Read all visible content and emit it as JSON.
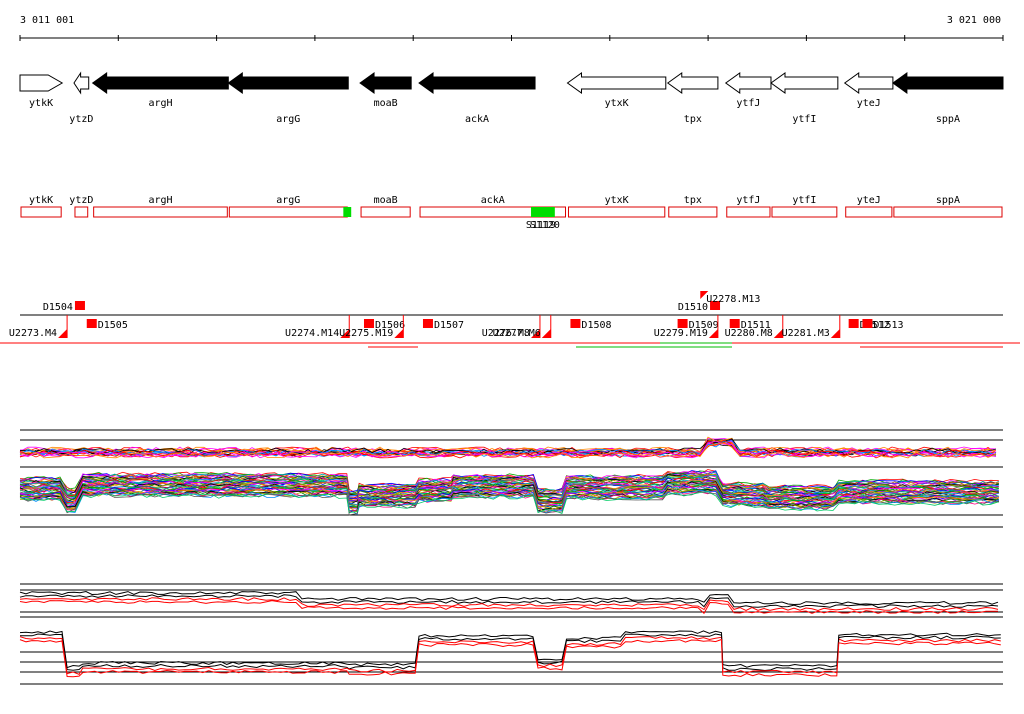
{
  "ruler": {
    "start_label": "3 011 001",
    "end_label": "3 021 000",
    "start_bp": 3011001,
    "end_bp": 3021000
  },
  "colors": {
    "gene_fill": "#000000",
    "gene_outline": "#000000",
    "annotation_box": "#dd0000",
    "highlight": "#00dd00",
    "marker": "#ff0000",
    "sample_line": "#ff0000",
    "black_line": "#000000"
  },
  "genes": [
    {
      "name": "ytkK",
      "start": 3011001,
      "end": 3011430,
      "strand": "+",
      "filled": false
    },
    {
      "name": "ytzD",
      "start": 3011550,
      "end": 3011700,
      "strand": "-",
      "filled": false
    },
    {
      "name": "argH",
      "start": 3011740,
      "end": 3013120,
      "strand": "-",
      "filled": true
    },
    {
      "name": "argG",
      "start": 3013120,
      "end": 3014340,
      "strand": "-",
      "filled": true
    },
    {
      "name": "moaB",
      "start": 3014460,
      "end": 3014980,
      "strand": "-",
      "filled": true
    },
    {
      "name": "ackA",
      "start": 3015060,
      "end": 3016240,
      "strand": "-",
      "filled": true
    },
    {
      "name": "ytxK",
      "start": 3016570,
      "end": 3017570,
      "strand": "-",
      "filled": false
    },
    {
      "name": "tpx",
      "start": 3017590,
      "end": 3018100,
      "strand": "-",
      "filled": false
    },
    {
      "name": "ytfJ",
      "start": 3018180,
      "end": 3018640,
      "strand": "-",
      "filled": false
    },
    {
      "name": "ytfI",
      "start": 3018640,
      "end": 3019320,
      "strand": "-",
      "filled": false
    },
    {
      "name": "yteJ",
      "start": 3019390,
      "end": 3019880,
      "strand": "-",
      "filled": false
    },
    {
      "name": "sppA",
      "start": 3019880,
      "end": 3021000,
      "strand": "-",
      "filled": true
    }
  ],
  "annotations": [
    {
      "name": "ytkK",
      "start": 3011001,
      "end": 3011430
    },
    {
      "name": "ytzD",
      "start": 3011550,
      "end": 3011700
    },
    {
      "name": "argH",
      "start": 3011740,
      "end": 3013120
    },
    {
      "name": "argG",
      "start": 3013120,
      "end": 3014340
    },
    {
      "name": "moaB",
      "start": 3014460,
      "end": 3014980
    },
    {
      "name": "ackA",
      "start": 3015060,
      "end": 3016560
    },
    {
      "name": "ytxK",
      "start": 3016570,
      "end": 3017570
    },
    {
      "name": "tpx",
      "start": 3017590,
      "end": 3018100
    },
    {
      "name": "ytfJ",
      "start": 3018180,
      "end": 3018640
    },
    {
      "name": "ytfI",
      "start": 3018640,
      "end": 3019320
    },
    {
      "name": "yteJ",
      "start": 3019390,
      "end": 3019880
    },
    {
      "name": "sppA",
      "start": 3019880,
      "end": 3021000
    }
  ],
  "highlights": [
    {
      "start": 3014290,
      "end": 3014370,
      "label": ""
    },
    {
      "start": 3016200,
      "end": 3016440,
      "label": "S1119"
    },
    {
      "start": 3016200,
      "end": 3016440,
      "label": "S1120"
    }
  ],
  "markers_upper": [
    {
      "label": "D1504",
      "pos": 3011560,
      "row": 0
    },
    {
      "label": "D1510",
      "pos": 3018020,
      "row": 0
    },
    {
      "label": "U2278.M13",
      "pos": 3017880,
      "row": -1
    }
  ],
  "markers_lower": [
    {
      "label": "U2273.M4",
      "pos": 3011480,
      "kind": "U"
    },
    {
      "label": "D1505",
      "pos": 3011680,
      "kind": "D"
    },
    {
      "label": "U2274.M14",
      "pos": 3014350,
      "kind": "U"
    },
    {
      "label": "D1506",
      "pos": 3014500,
      "kind": "D"
    },
    {
      "label": "U2275.M19",
      "pos": 3014900,
      "kind": "U"
    },
    {
      "label": "D1507",
      "pos": 3015100,
      "kind": "D"
    },
    {
      "label": "U2276.M8",
      "pos": 3016290,
      "kind": "U"
    },
    {
      "label": "U2277.M6",
      "pos": 3016400,
      "kind": "U"
    },
    {
      "label": "D1508",
      "pos": 3016600,
      "kind": "D"
    },
    {
      "label": "D1509",
      "pos": 3017690,
      "kind": "D"
    },
    {
      "label": "U2279.M19",
      "pos": 3018100,
      "kind": "U"
    },
    {
      "label": "D1511",
      "pos": 3018220,
      "kind": "D"
    },
    {
      "label": "U2280.M8",
      "pos": 3018760,
      "kind": "U"
    },
    {
      "label": "U2281.M3",
      "pos": 3019340,
      "kind": "U"
    },
    {
      "label": "D1512",
      "pos": 3019430,
      "kind": "D"
    },
    {
      "label": "D1513",
      "pos": 3019570,
      "kind": "D"
    }
  ],
  "expression": {
    "segments": [
      {
        "start": 3011001,
        "end": 3011480,
        "level": 0.42
      },
      {
        "start": 3011480,
        "end": 3011640,
        "level": 0.78
      },
      {
        "start": 3011640,
        "end": 3014350,
        "level": 0.28
      },
      {
        "start": 3014350,
        "end": 3014450,
        "level": 0.85
      },
      {
        "start": 3014450,
        "end": 3015060,
        "level": 0.62
      },
      {
        "start": 3015060,
        "end": 3015410,
        "level": 0.46
      },
      {
        "start": 3015410,
        "end": 3016270,
        "level": 0.32
      },
      {
        "start": 3016270,
        "end": 3016560,
        "level": 0.8
      },
      {
        "start": 3016560,
        "end": 3017590,
        "level": 0.36
      },
      {
        "start": 3017590,
        "end": 3018150,
        "level": 0.2
      },
      {
        "start": 3018150,
        "end": 3018620,
        "level": 0.6
      },
      {
        "start": 3018620,
        "end": 3019330,
        "level": 0.7
      },
      {
        "start": 3019330,
        "end": 3021000,
        "level": 0.52
      }
    ],
    "bottom_segments": [
      {
        "start": 3011001,
        "end": 3011480,
        "level": 0.2
      },
      {
        "start": 3011480,
        "end": 3011640,
        "level": 0.9
      },
      {
        "start": 3011640,
        "end": 3014350,
        "level": 0.82
      },
      {
        "start": 3014350,
        "end": 3015060,
        "level": 0.85
      },
      {
        "start": 3015060,
        "end": 3016270,
        "level": 0.28
      },
      {
        "start": 3016270,
        "end": 3016560,
        "level": 0.75
      },
      {
        "start": 3016560,
        "end": 3017160,
        "level": 0.32
      },
      {
        "start": 3017160,
        "end": 3018150,
        "level": 0.2
      },
      {
        "start": 3018150,
        "end": 3019330,
        "level": 0.88
      },
      {
        "start": 3019330,
        "end": 3021000,
        "level": 0.25
      }
    ]
  }
}
